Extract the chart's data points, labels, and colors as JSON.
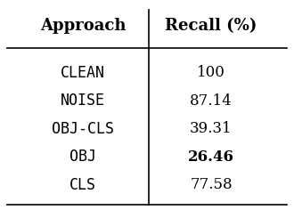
{
  "col_headers": [
    "Approach",
    "Recall (%)"
  ],
  "rows": [
    [
      "CLEAN",
      "100"
    ],
    [
      "NOISE",
      "87.14"
    ],
    [
      "OBJ-CLS",
      "39.31"
    ],
    [
      "OBJ",
      "26.46"
    ],
    [
      "CLS",
      "77.58"
    ]
  ],
  "bold_row": 3,
  "background_color": "#ffffff",
  "header_fontsize": 13,
  "cell_fontsize": 12,
  "approach_font": "monospace",
  "recall_font": "serif",
  "header_font": "serif"
}
